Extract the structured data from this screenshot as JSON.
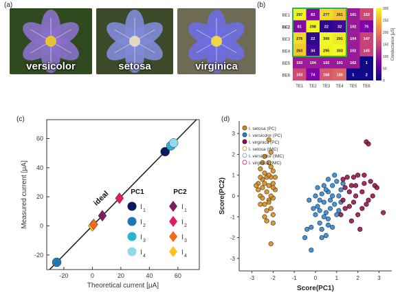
{
  "panel_labels": {
    "a": "(a)",
    "b": "(b)",
    "c": "(c)",
    "d": "(d)"
  },
  "photos": [
    {
      "caption": "versicolor",
      "bg": "#2f4a1e",
      "petal": "#8a70c8",
      "center": "#e6c13a"
    },
    {
      "caption": "setosa",
      "bg": "#3d4a2a",
      "petal": "#7f8ad6",
      "center": "#e1d8c0"
    },
    {
      "caption": "virginica",
      "bg": "#6f6a54",
      "petal": "#6d6ee0",
      "center": "#f0d44a"
    }
  ],
  "chart_data": [
    {
      "type": "heatmap",
      "rows": [
        "BE1",
        "BE2",
        "BE3",
        "BE4",
        "BE5",
        "BE6"
      ],
      "cols": [
        "TE1",
        "TE2",
        "TE3",
        "TE4",
        "TE5",
        "TE6"
      ],
      "values": [
        [
          297,
          83,
          277,
          261,
          101,
          153
        ],
        [
          81,
          298,
          22,
          32,
          102,
          75
        ],
        [
          276,
          22,
          300,
          291,
          104,
          147
        ],
        [
          263,
          34,
          295,
          303,
          102,
          145
        ],
        [
          103,
          104,
          102,
          101,
          102,
          1
        ],
        [
          153,
          74,
          168,
          180,
          1,
          2
        ]
      ],
      "colorbar": {
        "label": "Conductance [μS]",
        "ticks": [
          0,
          50,
          100,
          150,
          200,
          250,
          300
        ],
        "range": [
          0,
          300
        ]
      },
      "highlight_color": "#2fb34a"
    },
    {
      "type": "scatter",
      "xlabel": "Theoretical current [μA]",
      "ylabel": "Measured current [μA]",
      "xlim": [
        -32,
        75
      ],
      "ylim": [
        -30,
        73
      ],
      "xticks": [
        -20,
        0,
        20,
        40,
        60
      ],
      "yticks": [
        -20,
        0,
        20,
        40,
        60
      ],
      "fit_line_label": "ideal",
      "legend_headers": [
        "PC1",
        "PC2"
      ],
      "legend_items": [
        {
          "sub": "1",
          "pc1_color": "#0d1b5e",
          "pc2_color": "#7b1f5e"
        },
        {
          "sub": "2",
          "pc1_color": "#1f78b4",
          "pc2_color": "#e41a63"
        },
        {
          "sub": "3",
          "pc1_color": "#2bb3d6",
          "pc2_color": "#f06a1a"
        },
        {
          "sub": "4",
          "pc1_color": "#8fdaf0",
          "pc2_color": "#ffc21a"
        }
      ],
      "series": [
        {
          "name": "PC1",
          "marker": "circle",
          "points": [
            {
              "x": -25,
              "y": -25,
              "color": "#1f78b4"
            },
            {
              "x": 51,
              "y": 51,
              "color": "#0d1b5e"
            },
            {
              "x": 55,
              "y": 55,
              "color": "#2bb3d6"
            },
            {
              "x": 57,
              "y": 57,
              "color": "#8fdaf0"
            }
          ]
        },
        {
          "name": "PC2",
          "marker": "diamond",
          "points": [
            {
              "x": 0,
              "y": 0,
              "color": "#ffc21a"
            },
            {
              "x": 1,
              "y": 1,
              "color": "#f06a1a"
            },
            {
              "x": 7,
              "y": 7,
              "color": "#7b1f5e"
            },
            {
              "x": 19,
              "y": 19,
              "color": "#e41a63"
            }
          ]
        }
      ]
    },
    {
      "type": "scatter",
      "xlabel": "Score(PC1)",
      "ylabel": "Score(PC2)",
      "xlim": [
        -3.6,
        3.6
      ],
      "ylim": [
        -3.6,
        3.6
      ],
      "xticks": [
        -3,
        -2,
        -1,
        0,
        1,
        2,
        3
      ],
      "yticks": [
        -3,
        -2,
        -1,
        0,
        1,
        2,
        3
      ],
      "legend": [
        "I. setosa (PC)",
        "I. versicolor (PC)",
        "I. virginica (PC)",
        "I. setosa (IMC)",
        "I. versicolor (IMC)",
        "I. virginica (IMC)"
      ],
      "series": [
        {
          "name": "I. setosa (PC)",
          "fill": "#c98a2a",
          "stroke": "#7a4a0a",
          "points": [
            [
              -2.7,
              0.3
            ],
            [
              -2.5,
              0.4
            ],
            [
              -2.4,
              1.1
            ],
            [
              -2.1,
              1.4
            ],
            [
              -2.3,
              0.9
            ],
            [
              -2.0,
              0.6
            ],
            [
              -2.6,
              0.0
            ],
            [
              -2.2,
              -0.2
            ],
            [
              -2.4,
              -0.4
            ],
            [
              -2.0,
              -0.1
            ],
            [
              -2.3,
              0.2
            ],
            [
              -1.9,
              0.3
            ],
            [
              -2.5,
              0.8
            ],
            [
              -2.1,
              0.9
            ],
            [
              -2.6,
              1.3
            ],
            [
              -2.2,
              1.6
            ],
            [
              -2.0,
              1.2
            ],
            [
              -2.4,
              1.9
            ],
            [
              -2.1,
              2.1
            ],
            [
              -2.7,
              0.6
            ],
            [
              -2.3,
              -0.7
            ],
            [
              -2.1,
              -0.6
            ],
            [
              -2.6,
              -0.4
            ],
            [
              -1.9,
              0.9
            ],
            [
              -2.2,
              0.5
            ],
            [
              -2.4,
              -1.0
            ],
            [
              -2.0,
              -0.9
            ],
            [
              -2.5,
              -0.1
            ],
            [
              -2.8,
              0.5
            ],
            [
              -2.1,
              0.0
            ],
            [
              -2.3,
              -1.2
            ],
            [
              -2.0,
              -1.3
            ],
            [
              -2.2,
              1.0
            ],
            [
              -2.5,
              1.6
            ],
            [
              -2.2,
              2.7
            ],
            [
              -2.1,
              -2.3
            ],
            [
              -2.4,
              0.6
            ],
            [
              -2.0,
              0.4
            ],
            [
              -2.6,
              0.9
            ],
            [
              -2.2,
              -0.3
            ]
          ]
        },
        {
          "name": "I. versicolor (PC)",
          "fill": "#2f7fc0",
          "stroke": "#1a4e80",
          "points": [
            [
              0.1,
              -0.5
            ],
            [
              0.4,
              -0.3
            ],
            [
              0.6,
              0.2
            ],
            [
              0.8,
              0.5
            ],
            [
              1.0,
              0.7
            ],
            [
              0.3,
              0.1
            ],
            [
              -0.1,
              -0.6
            ],
            [
              0.5,
              -0.8
            ],
            [
              0.2,
              -1.3
            ],
            [
              -0.2,
              -1.5
            ],
            [
              0.6,
              -1.1
            ],
            [
              0.9,
              -0.4
            ],
            [
              1.1,
              0.0
            ],
            [
              0.4,
              0.5
            ],
            [
              0.7,
              -0.2
            ],
            [
              1.2,
              0.3
            ],
            [
              0.0,
              -0.9
            ],
            [
              0.3,
              -1.6
            ],
            [
              -0.5,
              -2.0
            ],
            [
              -0.2,
              -2.6
            ],
            [
              0.5,
              -1.9
            ],
            [
              0.8,
              -1.5
            ],
            [
              1.0,
              -0.9
            ],
            [
              0.2,
              -0.2
            ],
            [
              0.6,
              0.8
            ],
            [
              0.9,
              1.0
            ],
            [
              1.3,
              0.6
            ],
            [
              0.1,
              0.4
            ],
            [
              -0.3,
              -0.2
            ],
            [
              0.4,
              -1.0
            ],
            [
              0.7,
              -0.6
            ],
            [
              1.1,
              -0.7
            ],
            [
              0.3,
              -2.0
            ],
            [
              -0.4,
              -1.6
            ],
            [
              0.0,
              0.0
            ],
            [
              0.5,
              0.3
            ],
            [
              0.8,
              0.0
            ],
            [
              1.2,
              -0.3
            ],
            [
              0.6,
              -1.4
            ],
            [
              0.2,
              -0.7
            ]
          ]
        },
        {
          "name": "I. virginica (PC)",
          "fill": "#8a1040",
          "stroke": "#5a0a2a",
          "points": [
            [
              1.4,
              0.4
            ],
            [
              1.8,
              0.9
            ],
            [
              2.2,
              0.2
            ],
            [
              2.6,
              0.7
            ],
            [
              1.6,
              -0.5
            ],
            [
              2.0,
              -0.9
            ],
            [
              2.4,
              -0.4
            ],
            [
              1.3,
              -0.2
            ],
            [
              1.9,
              0.0
            ],
            [
              2.3,
              1.0
            ],
            [
              2.8,
              0.5
            ],
            [
              1.5,
              0.9
            ],
            [
              1.7,
              -1.2
            ],
            [
              2.1,
              -1.6
            ],
            [
              1.2,
              -0.9
            ],
            [
              2.5,
              -0.2
            ],
            [
              1.9,
              0.5
            ],
            [
              2.7,
              0.0
            ],
            [
              1.4,
              -0.6
            ],
            [
              2.0,
              1.0
            ],
            [
              1.6,
              0.2
            ],
            [
              2.3,
              0.6
            ],
            [
              2.4,
              2.6
            ],
            [
              2.5,
              2.5
            ],
            [
              2.9,
              0.4
            ],
            [
              3.2,
              -0.8
            ],
            [
              1.8,
              -0.3
            ],
            [
              2.2,
              -0.6
            ],
            [
              1.3,
              0.8
            ],
            [
              1.7,
              0.5
            ]
          ]
        },
        {
          "name": "I. setosa (IMC)",
          "fill": "none",
          "stroke": "#d99a3a",
          "points": []
        },
        {
          "name": "I. versicolor (IMC)",
          "fill": "none",
          "stroke": "#6aa8d8",
          "points": []
        },
        {
          "name": "I. virginica (IMC)",
          "fill": "none",
          "stroke": "#c83a6a",
          "points": []
        }
      ]
    }
  ]
}
